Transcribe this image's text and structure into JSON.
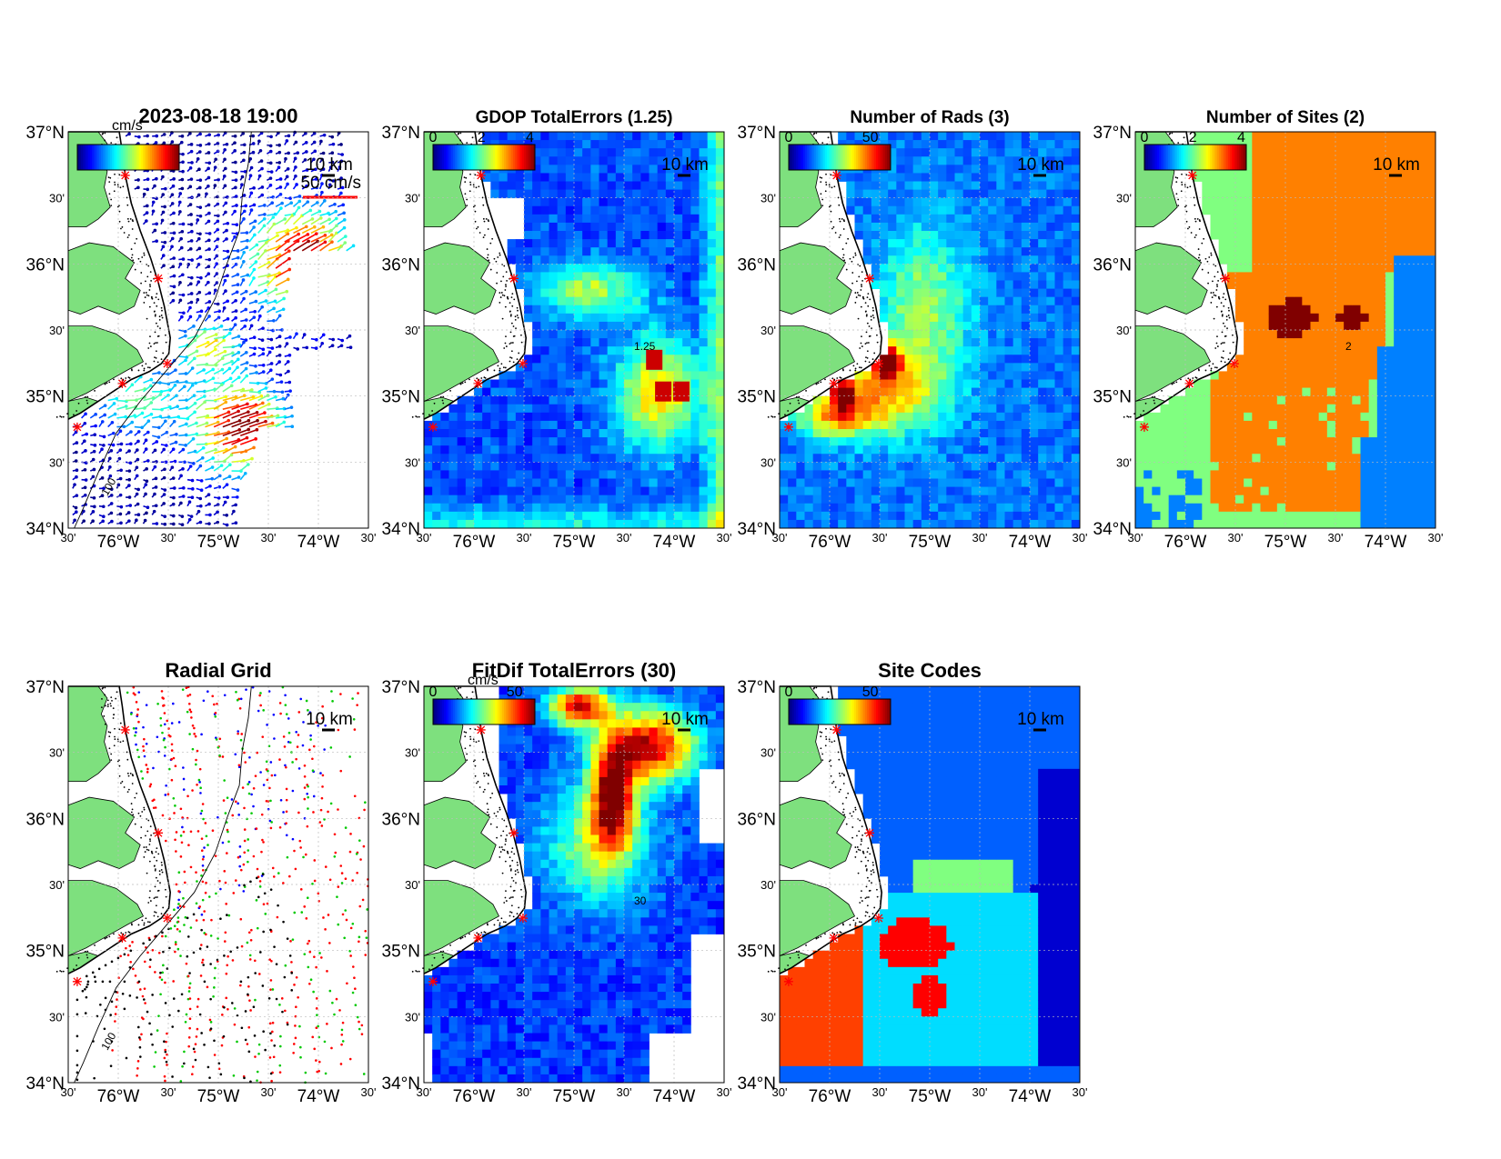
{
  "figure": {
    "lat_ticks": [
      "37°N",
      "30'",
      "36°N",
      "30'",
      "35°N",
      "30'",
      "34°N"
    ],
    "lon_ticks": [
      "30'",
      "76°W",
      "30'",
      "75°W",
      "30'",
      "74°W",
      "30'"
    ],
    "scale_bar_label": "10 km"
  },
  "panels": [
    {
      "id": "vectors",
      "title": "2023-08-18 19:00",
      "colorbar_unit": "cm/s",
      "colorbar_ticks": [],
      "ref_vector_label": "50 cm/s",
      "contour_label": "100",
      "colormap": "jet"
    },
    {
      "id": "gdop",
      "title": "GDOP TotalErrors (1.25)",
      "colorbar_unit": "",
      "colorbar_ticks": [
        "0",
        "2",
        "4"
      ],
      "contour_label": "1.25",
      "colormap": "jet"
    },
    {
      "id": "rads",
      "title": "Number of Rads (3)",
      "colorbar_unit": "",
      "colorbar_ticks": [
        "0",
        "50"
      ],
      "colormap": "jet"
    },
    {
      "id": "sites",
      "title": "Number of Sites (2)",
      "colorbar_unit": "",
      "colorbar_ticks": [
        "0",
        "2",
        "4"
      ],
      "contour_label": "2",
      "colormap": "jet"
    },
    {
      "id": "radgrid",
      "title": "Radial Grid",
      "contour_label": "100",
      "site_colors": [
        "#0000ff",
        "#ff0000",
        "#00c800",
        "#ff0000",
        "#000000"
      ]
    },
    {
      "id": "fitdif",
      "title": "FitDif TotalErrors (30)",
      "colorbar_unit": "cm/s",
      "colorbar_ticks": [
        "0",
        "50"
      ],
      "contour_label": "30",
      "colormap": "jet"
    },
    {
      "id": "codes",
      "title": "Site Codes",
      "colorbar_unit": "",
      "colorbar_ticks": [
        "0",
        "50"
      ],
      "colormap": "jet"
    }
  ],
  "colors": {
    "land": "#7ee07e",
    "coast": "#000000",
    "site_marker": "#ff0000",
    "grid": "#bbbbbb"
  }
}
